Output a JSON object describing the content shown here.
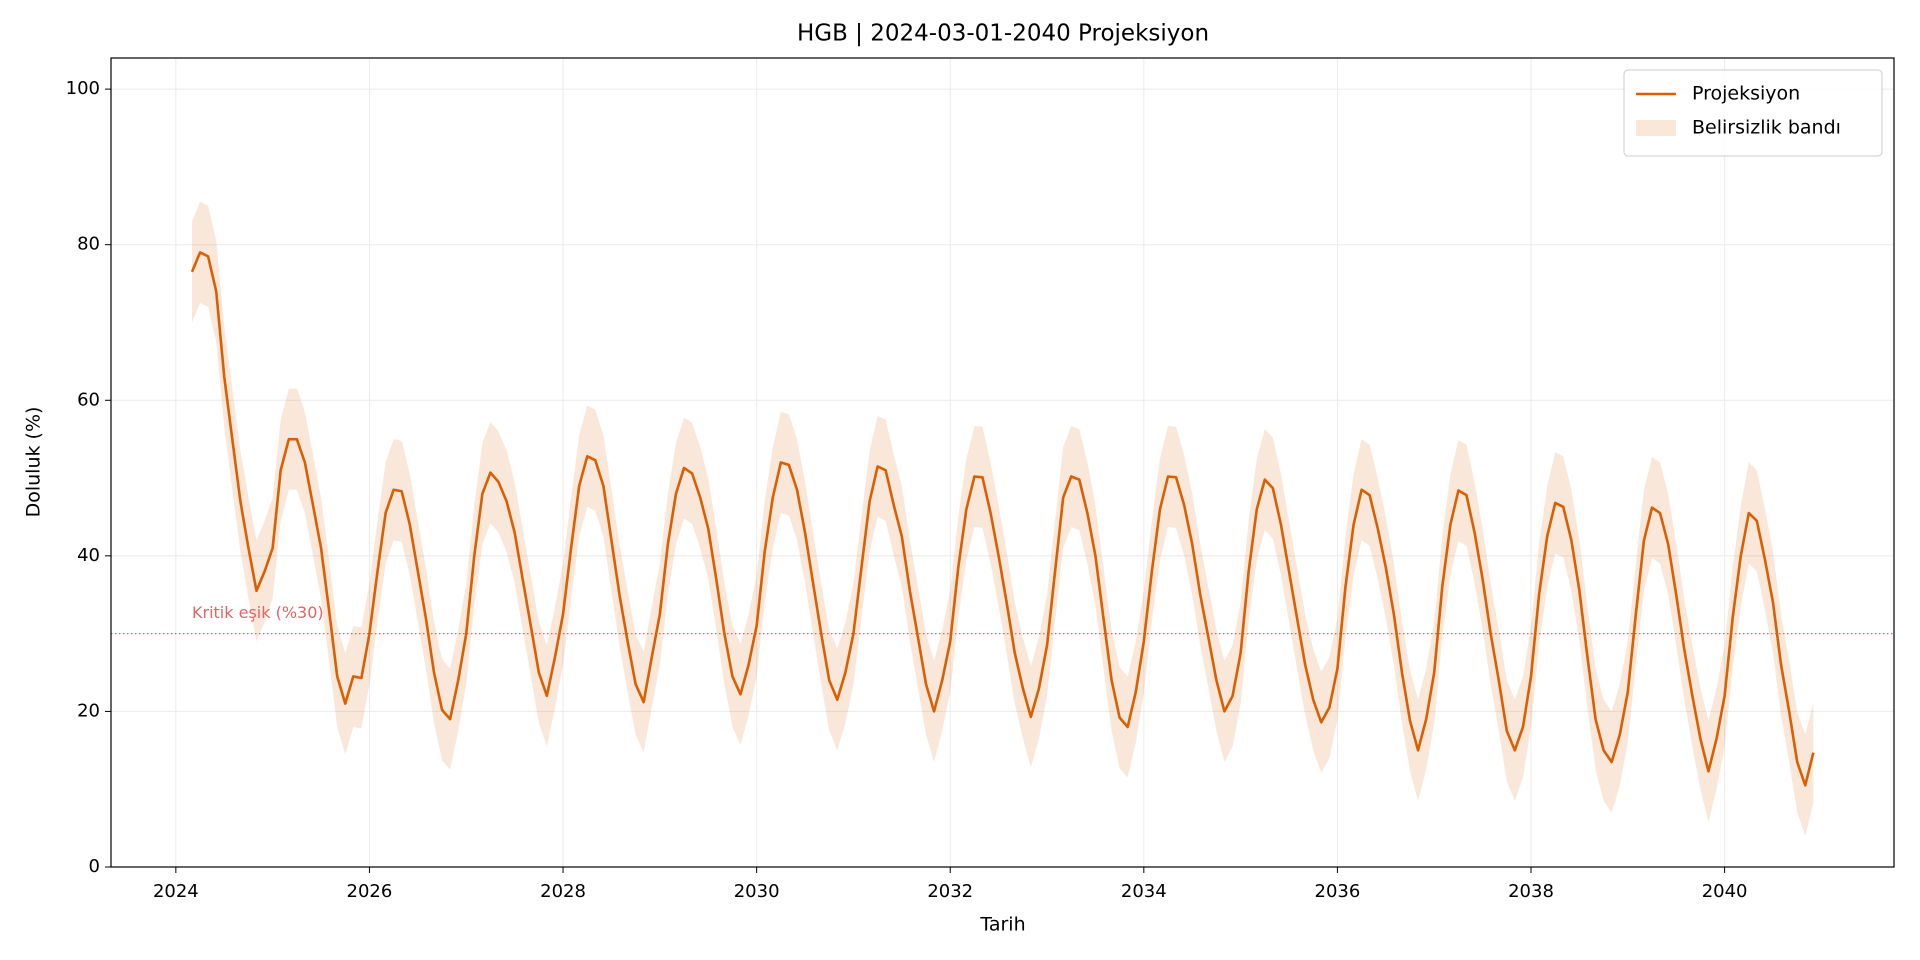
{
  "chart_data": {
    "type": "line",
    "title": "HGB | 2024-03-01-2040 Projeksiyon",
    "x_label": "Tarih",
    "y_label": "Doluluk (%)",
    "xlim": [
      2023.33,
      2041.75
    ],
    "ylim": [
      0,
      104
    ],
    "xticks": [
      2024,
      2026,
      2028,
      2030,
      2032,
      2034,
      2036,
      2038,
      2040
    ],
    "yticks": [
      0,
      20,
      40,
      60,
      80,
      100
    ],
    "grid": true,
    "legend": "upper right",
    "x": [
      2024.167,
      2024.25,
      2024.333,
      2024.417,
      2024.5,
      2024.583,
      2024.667,
      2024.75,
      2024.833,
      2024.917,
      2025,
      2025.083,
      2025.167,
      2025.25,
      2025.333,
      2025.417,
      2025.5,
      2025.583,
      2025.667,
      2025.75,
      2025.833,
      2025.917,
      2026,
      2026.083,
      2026.167,
      2026.25,
      2026.333,
      2026.417,
      2026.5,
      2026.583,
      2026.667,
      2026.75,
      2026.833,
      2026.917,
      2027,
      2027.083,
      2027.167,
      2027.25,
      2027.333,
      2027.417,
      2027.5,
      2027.583,
      2027.667,
      2027.75,
      2027.833,
      2027.917,
      2028,
      2028.083,
      2028.167,
      2028.25,
      2028.333,
      2028.417,
      2028.5,
      2028.583,
      2028.667,
      2028.75,
      2028.833,
      2028.917,
      2029,
      2029.083,
      2029.167,
      2029.25,
      2029.333,
      2029.417,
      2029.5,
      2029.583,
      2029.667,
      2029.75,
      2029.833,
      2029.917,
      2030,
      2030.083,
      2030.167,
      2030.25,
      2030.333,
      2030.417,
      2030.5,
      2030.583,
      2030.667,
      2030.75,
      2030.833,
      2030.917,
      2031,
      2031.083,
      2031.167,
      2031.25,
      2031.333,
      2031.417,
      2031.5,
      2031.583,
      2031.667,
      2031.75,
      2031.833,
      2031.917,
      2032,
      2032.083,
      2032.167,
      2032.25,
      2032.333,
      2032.417,
      2032.5,
      2032.583,
      2032.667,
      2032.75,
      2032.833,
      2032.917,
      2033,
      2033.083,
      2033.167,
      2033.25,
      2033.333,
      2033.417,
      2033.5,
      2033.583,
      2033.667,
      2033.75,
      2033.833,
      2033.917,
      2034,
      2034.083,
      2034.167,
      2034.25,
      2034.333,
      2034.417,
      2034.5,
      2034.583,
      2034.667,
      2034.75,
      2034.833,
      2034.917,
      2035,
      2035.083,
      2035.167,
      2035.25,
      2035.333,
      2035.417,
      2035.5,
      2035.583,
      2035.667,
      2035.75,
      2035.833,
      2035.917,
      2036,
      2036.083,
      2036.167,
      2036.25,
      2036.333,
      2036.417,
      2036.5,
      2036.583,
      2036.667,
      2036.75,
      2036.833,
      2036.917,
      2037,
      2037.083,
      2037.167,
      2037.25,
      2037.333,
      2037.417,
      2037.5,
      2037.583,
      2037.667,
      2037.75,
      2037.833,
      2037.917,
      2038,
      2038.083,
      2038.167,
      2038.25,
      2038.333,
      2038.417,
      2038.5,
      2038.583,
      2038.667,
      2038.75,
      2038.833,
      2038.917,
      2039,
      2039.083,
      2039.167,
      2039.25,
      2039.333,
      2039.417,
      2039.5,
      2039.583,
      2039.667,
      2039.75,
      2039.833,
      2039.917,
      2040,
      2040.083,
      2040.167,
      2040.25,
      2040.333,
      2040.417,
      2040.5,
      2040.583,
      2040.667,
      2040.75,
      2040.833,
      2040.917
    ],
    "series": [
      {
        "name": "Projeksiyon",
        "color": "#d95f02",
        "values": [
          76.5,
          79,
          78.5,
          74,
          63,
          55,
          47,
          41,
          35.5,
          38,
          41,
          51,
          55,
          55,
          52,
          46.5,
          41,
          33,
          24.5,
          21,
          24.5,
          24.3,
          30,
          38,
          45.5,
          48.5,
          48.3,
          44,
          38,
          32,
          25,
          20.2,
          19,
          24,
          30,
          40,
          48,
          50.7,
          49.5,
          47,
          43,
          37,
          31,
          25,
          22,
          27,
          32.5,
          41,
          49,
          52.8,
          52.3,
          49,
          42,
          35,
          29,
          23.5,
          21.2,
          27,
          32.5,
          41.5,
          48,
          51.3,
          50.6,
          47.5,
          43.5,
          37,
          30,
          24.5,
          22.2,
          26,
          31,
          40.5,
          47.5,
          52,
          51.7,
          48.5,
          43,
          36.5,
          30,
          24,
          21.5,
          25,
          30,
          38.5,
          47,
          51.5,
          51,
          46.5,
          42.5,
          35.5,
          29.5,
          23.5,
          20,
          24,
          29,
          38.5,
          46,
          50.2,
          50.1,
          45.5,
          40,
          34,
          27.5,
          23,
          19.3,
          23,
          28.5,
          38,
          47.5,
          50.2,
          49.8,
          45.5,
          40,
          32,
          24,
          19.2,
          18,
          22.5,
          29,
          38,
          46,
          50.2,
          50.1,
          46.5,
          41.5,
          35,
          29.5,
          24,
          20,
          22,
          27.5,
          38,
          46,
          49.8,
          48.7,
          44,
          38,
          32,
          26,
          21.5,
          18.6,
          20.5,
          25.5,
          36,
          44,
          48.5,
          47.8,
          43.5,
          38.5,
          32.5,
          25,
          18.8,
          15,
          19,
          25,
          36,
          44,
          48.4,
          47.8,
          43,
          37,
          30,
          24,
          17.5,
          15,
          18,
          24.5,
          35,
          42.5,
          46.8,
          46.3,
          42,
          35.5,
          27,
          19,
          15,
          13.5,
          17,
          22.5,
          32.5,
          42,
          46.2,
          45.5,
          41.5,
          35,
          28,
          22,
          16.5,
          12.3,
          16.5,
          22,
          32,
          40,
          45.5,
          44.5,
          39.5,
          34,
          26,
          20,
          13.5,
          10.5,
          14.7
        ]
      }
    ],
    "band": {
      "name": "Belirsizlik bandı",
      "color": "#d95f02",
      "alpha": 0.15,
      "upper": [
        83,
        85.5,
        85,
        80.5,
        69.5,
        61.5,
        53.5,
        47.5,
        42,
        44.5,
        47.5,
        57.5,
        61.5,
        61.5,
        58.5,
        53,
        47.5,
        39.5,
        31,
        27.5,
        31,
        30.8,
        36.5,
        44.5,
        52,
        55,
        54.8,
        50.5,
        44.5,
        38.5,
        31.5,
        26.7,
        25.5,
        30.5,
        36.5,
        46.5,
        54.5,
        57.2,
        56,
        53.5,
        49.5,
        43.5,
        37.5,
        31.5,
        28.5,
        33.5,
        39,
        47.5,
        55.5,
        59.3,
        58.8,
        55.5,
        48.5,
        41.5,
        35.5,
        30,
        27.7,
        33.5,
        39,
        48,
        54.5,
        57.8,
        57.1,
        54,
        50,
        43.5,
        36.5,
        31,
        28.7,
        32.5,
        37.5,
        47,
        54,
        58.5,
        58.2,
        55,
        49.5,
        43,
        36.5,
        30.5,
        28,
        31.5,
        36.5,
        45,
        53.5,
        58,
        57.5,
        53,
        49,
        42,
        36,
        30,
        26.5,
        30.5,
        35.5,
        45,
        52.5,
        56.7,
        56.6,
        52,
        46.5,
        40.5,
        34,
        29.5,
        25.8,
        29.5,
        35,
        44.5,
        54,
        56.7,
        56.3,
        52,
        46.5,
        38.5,
        30.5,
        25.7,
        24.5,
        29,
        35.5,
        44.5,
        52.5,
        56.7,
        56.6,
        53,
        48,
        41.5,
        36,
        30.5,
        26.5,
        28.5,
        34,
        44.5,
        52.5,
        56.3,
        55.2,
        50.5,
        44.5,
        38.5,
        32.5,
        28,
        25.1,
        27,
        32,
        42.5,
        50.5,
        55,
        54.3,
        50,
        45,
        39,
        31.5,
        25.3,
        21.5,
        25.5,
        31.5,
        42.5,
        50.5,
        54.9,
        54.3,
        49.5,
        43.5,
        36.5,
        30.5,
        24,
        21.5,
        24.5,
        31,
        41.5,
        49,
        53.3,
        52.8,
        48.5,
        42,
        33.5,
        25.5,
        21.5,
        20,
        23.5,
        29,
        39,
        48.5,
        52.7,
        52,
        48,
        41.5,
        34.5,
        28.5,
        23,
        18.8,
        23,
        28.5,
        38.5,
        46.5,
        52,
        51,
        46,
        40.5,
        32.5,
        26.5,
        20,
        17,
        21.2
      ],
      "lower": [
        70,
        72.5,
        72,
        67.5,
        56.5,
        48.5,
        40.5,
        34.5,
        29,
        31.5,
        34.5,
        44.5,
        48.5,
        48.5,
        45.5,
        40,
        34.5,
        26.5,
        18,
        14.5,
        18,
        17.8,
        23.5,
        31.5,
        39,
        42,
        41.8,
        37.5,
        31.5,
        25.5,
        18.5,
        13.7,
        12.5,
        17.5,
        23.5,
        33.5,
        41.5,
        44.2,
        43,
        40.5,
        36.5,
        30.5,
        24.5,
        18.5,
        15.5,
        20.5,
        26,
        34.5,
        42.5,
        46.3,
        45.8,
        42.5,
        35.5,
        28.5,
        22.5,
        17,
        14.7,
        20.5,
        26,
        35,
        41.5,
        44.8,
        44.1,
        41,
        37,
        30.5,
        23.5,
        18,
        15.7,
        19.5,
        24.5,
        34,
        41,
        45.5,
        45.2,
        42,
        36.5,
        30,
        23.5,
        17.5,
        15,
        18.5,
        23.5,
        32,
        40.5,
        45,
        44.5,
        40,
        36,
        29,
        23,
        17,
        13.5,
        17.5,
        22.5,
        32,
        39.5,
        43.7,
        43.6,
        39,
        33.5,
        27.5,
        21,
        16.5,
        12.8,
        16.5,
        22,
        31.5,
        41,
        43.7,
        43.3,
        39,
        33.5,
        25.5,
        17.5,
        12.7,
        11.5,
        16,
        22.5,
        31.5,
        39.5,
        43.7,
        43.6,
        40,
        35,
        28.5,
        23,
        17.5,
        13.5,
        15.5,
        21,
        31.5,
        39.5,
        43.3,
        42.2,
        37.5,
        31.5,
        25.5,
        19.5,
        15,
        12.1,
        14,
        19,
        29.5,
        37.5,
        42,
        41.3,
        37,
        32,
        26,
        18.5,
        12.3,
        8.5,
        12.5,
        18.5,
        29.5,
        37.5,
        41.9,
        41.3,
        36.5,
        30.5,
        23.5,
        17.5,
        11,
        8.5,
        11.5,
        18,
        28.5,
        36,
        40.3,
        39.8,
        35.5,
        29,
        20.5,
        12.5,
        8.5,
        7,
        10.5,
        16,
        26,
        35.5,
        39.7,
        39,
        35,
        28.5,
        21.5,
        15.5,
        10,
        5.8,
        10,
        15.5,
        25.5,
        33.5,
        39,
        38,
        33,
        27.5,
        19.5,
        13.5,
        7,
        4,
        8.2
      ]
    },
    "threshold": {
      "value": 30,
      "label": "Kritik eşik (%30)",
      "color": "#e06666"
    }
  }
}
